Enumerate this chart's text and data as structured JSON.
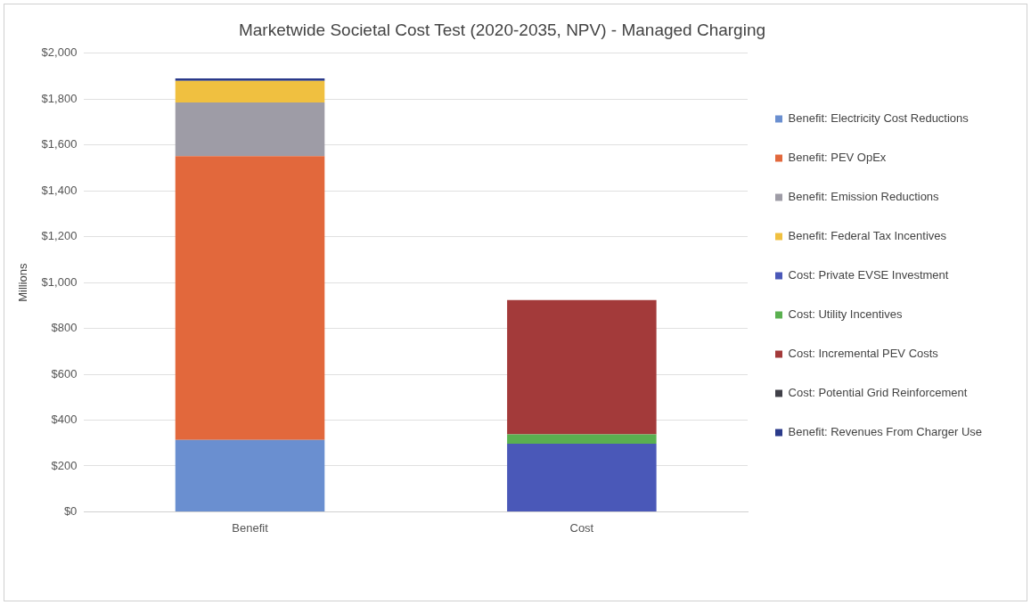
{
  "chart_data": {
    "type": "bar",
    "title": "Marketwide Societal Cost Test (2020-2035, NPV) - Managed Charging",
    "ylabel": "Millions",
    "categories": [
      "Benefit",
      "Cost"
    ],
    "stacked": true,
    "series": [
      {
        "name": "Benefit: Electricity Cost Reductions",
        "color": "#6a8fd0",
        "values": [
          313,
          null
        ]
      },
      {
        "name": "Benefit: PEV OpEx",
        "color": "#e2683c",
        "values": [
          1238,
          null
        ]
      },
      {
        "name": "Benefit: Emission Reductions",
        "color": "#9e9ca6",
        "values": [
          234,
          null
        ]
      },
      {
        "name": "Benefit: Federal Tax Incentives",
        "color": "#f0c040",
        "values": [
          95,
          null
        ]
      },
      {
        "name": "Cost: Private EVSE Investment",
        "color": "#4a58b8",
        "values": [
          null,
          297
        ]
      },
      {
        "name": "Cost: Utility Incentives",
        "color": "#5ab050",
        "values": [
          null,
          41
        ]
      },
      {
        "name": "Cost: Incremental PEV Costs",
        "color": "#a33a3a",
        "values": [
          null,
          586
        ]
      },
      {
        "name": "Cost: Potential Grid Reinforcement",
        "color": "#404048",
        "values": [
          null,
          0
        ]
      },
      {
        "name": "Benefit: Revenues From Charger Use",
        "color": "#2a3a8a",
        "values": [
          10,
          null
        ]
      }
    ],
    "ylim": [
      0,
      2000
    ],
    "yticks": [
      {
        "value": 0,
        "label": "$0"
      },
      {
        "value": 200,
        "label": "$200"
      },
      {
        "value": 400,
        "label": "$400"
      },
      {
        "value": 600,
        "label": "$600"
      },
      {
        "value": 800,
        "label": "$800"
      },
      {
        "value": 1000,
        "label": "$1,000"
      },
      {
        "value": 1200,
        "label": "$1,200"
      },
      {
        "value": 1400,
        "label": "$1,400"
      },
      {
        "value": 1600,
        "label": "$1,600"
      },
      {
        "value": 1800,
        "label": "$1,800"
      },
      {
        "value": 2000,
        "label": "$2,000"
      }
    ],
    "grid": "y",
    "legend": "right"
  }
}
